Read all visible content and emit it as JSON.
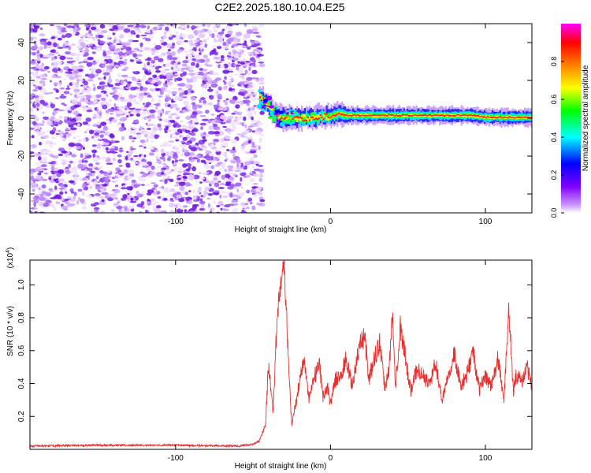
{
  "title": "C2E2.2025.180.10.04.E25",
  "chart_data": [
    {
      "type": "heatmap",
      "xlabel": "Height of straight line (km)",
      "ylabel": "Frequency (Hz)",
      "xlim": [
        -194,
        130
      ],
      "ylim": [
        -50,
        50
      ],
      "x_ticks": [
        -100,
        0,
        100
      ],
      "x_tick_labels": [
        "-100",
        "0",
        "100"
      ],
      "y_ticks": [
        -40,
        -20,
        0,
        20,
        40
      ],
      "y_tick_labels": [
        "-40",
        "-20",
        "0",
        "20",
        "40"
      ],
      "grid": false,
      "noise_region_x": [
        -194,
        -44
      ],
      "band_center_hz": [
        [
          -46,
          11
        ],
        [
          -42,
          8
        ],
        [
          -38,
          4
        ],
        [
          -34,
          1
        ],
        [
          -30,
          0
        ],
        [
          -25,
          0.5
        ],
        [
          -20,
          0
        ],
        [
          -10,
          0.5
        ],
        [
          0,
          1
        ],
        [
          5,
          2.5
        ],
        [
          10,
          1.5
        ],
        [
          20,
          1.5
        ],
        [
          40,
          1.5
        ],
        [
          60,
          1.5
        ],
        [
          80,
          1.5
        ],
        [
          90,
          1.5
        ],
        [
          100,
          0.5
        ],
        [
          110,
          0.5
        ],
        [
          120,
          0.5
        ],
        [
          130,
          0.5
        ]
      ],
      "colorbar": {
        "label": "Normalized spectral amplitude",
        "range": [
          0,
          1
        ],
        "ticks": [
          0.0,
          0.2,
          0.4,
          0.6,
          0.8
        ],
        "tick_labels": [
          "0.0",
          "0.2",
          "0.4",
          "0.6",
          "0.8"
        ],
        "colors": [
          "#ffffff",
          "#cc99ff",
          "#8000ff",
          "#0000ff",
          "#00ffff",
          "#00ff00",
          "#ffff00",
          "#ff8000",
          "#ff0000",
          "#ff00ff"
        ]
      }
    },
    {
      "type": "line",
      "xlabel": "Height of straight line (km)",
      "ylabel": "SNR (10 * v/v)",
      "multiplier_label": "(x10",
      "multiplier_exp": "4",
      "multiplier_close": ")",
      "xlim": [
        -194,
        130
      ],
      "ylim": [
        0,
        1.15
      ],
      "x_ticks": [
        -100,
        0,
        100
      ],
      "x_tick_labels": [
        "-100",
        "0",
        "100"
      ],
      "y_ticks": [
        0.2,
        0.4,
        0.6,
        0.8,
        1.0
      ],
      "y_tick_labels": [
        "0.2",
        "0.4",
        "0.6",
        "0.8",
        "1.0"
      ],
      "grid": false,
      "color": "#e53030",
      "x": [
        -194,
        -150,
        -100,
        -60,
        -50,
        -46,
        -42,
        -40,
        -37,
        -35,
        -33,
        -30,
        -27,
        -25,
        -22,
        -20,
        -17,
        -14,
        -10,
        -7,
        -5,
        -2,
        0,
        3,
        7,
        10,
        14,
        18,
        22,
        25,
        28,
        32,
        35,
        38,
        40,
        42,
        45,
        48,
        52,
        56,
        60,
        64,
        68,
        72,
        76,
        80,
        84,
        88,
        92,
        96,
        100,
        104,
        108,
        112,
        115,
        118,
        120,
        124,
        127,
        130
      ],
      "y": [
        0.02,
        0.025,
        0.025,
        0.02,
        0.03,
        0.05,
        0.15,
        0.52,
        0.22,
        0.7,
        0.95,
        1.15,
        0.5,
        0.15,
        0.3,
        0.42,
        0.55,
        0.3,
        0.45,
        0.5,
        0.32,
        0.38,
        0.28,
        0.42,
        0.45,
        0.55,
        0.38,
        0.6,
        0.7,
        0.42,
        0.55,
        0.65,
        0.38,
        0.5,
        0.82,
        0.4,
        0.75,
        0.58,
        0.35,
        0.5,
        0.44,
        0.4,
        0.52,
        0.3,
        0.46,
        0.58,
        0.38,
        0.45,
        0.6,
        0.36,
        0.45,
        0.38,
        0.55,
        0.3,
        0.86,
        0.35,
        0.45,
        0.42,
        0.5,
        0.38
      ]
    }
  ]
}
